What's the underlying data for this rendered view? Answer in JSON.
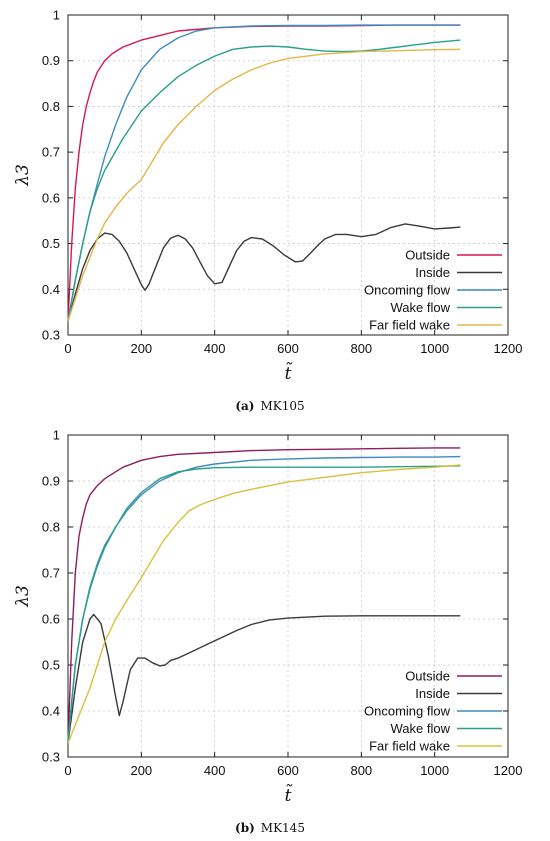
{
  "chart_data": [
    {
      "type": "line",
      "caption_tag": "(a)",
      "caption_name": "MK105",
      "xlabel": "t̃",
      "ylabel": "λ3",
      "xlim": [
        0,
        1200
      ],
      "ylim": [
        0.3,
        1.0
      ],
      "xticks": [
        0,
        200,
        400,
        600,
        800,
        1000,
        1200
      ],
      "yticks": [
        0.3,
        0.4,
        0.5,
        0.6,
        0.7,
        0.8,
        0.9,
        1
      ],
      "grid": true,
      "legend_position": "bottom-right",
      "series": [
        {
          "name": "Outside",
          "color": "#d6165a",
          "x": [
            0,
            10,
            20,
            30,
            40,
            50,
            60,
            70,
            80,
            100,
            120,
            150,
            200,
            250,
            300,
            400,
            500,
            600,
            700,
            800,
            900,
            1000,
            1070
          ],
          "y": [
            0.33,
            0.5,
            0.62,
            0.7,
            0.76,
            0.8,
            0.83,
            0.855,
            0.875,
            0.9,
            0.915,
            0.93,
            0.945,
            0.955,
            0.965,
            0.972,
            0.975,
            0.976,
            0.976,
            0.977,
            0.978,
            0.978,
            0.978
          ]
        },
        {
          "name": "Inside",
          "color": "#3a3a3a",
          "x": [
            0,
            20,
            40,
            60,
            80,
            100,
            120,
            140,
            160,
            180,
            200,
            210,
            220,
            240,
            260,
            280,
            300,
            320,
            340,
            360,
            380,
            400,
            420,
            440,
            460,
            480,
            500,
            530,
            560,
            590,
            620,
            640,
            660,
            680,
            700,
            730,
            760,
            800,
            840,
            880,
            920,
            960,
            1000,
            1040,
            1070
          ],
          "y": [
            0.33,
            0.39,
            0.445,
            0.485,
            0.51,
            0.523,
            0.52,
            0.505,
            0.48,
            0.445,
            0.41,
            0.398,
            0.41,
            0.45,
            0.49,
            0.512,
            0.518,
            0.51,
            0.49,
            0.46,
            0.43,
            0.412,
            0.415,
            0.45,
            0.485,
            0.505,
            0.513,
            0.51,
            0.495,
            0.475,
            0.46,
            0.462,
            0.478,
            0.495,
            0.51,
            0.52,
            0.52,
            0.515,
            0.52,
            0.535,
            0.543,
            0.538,
            0.532,
            0.534,
            0.536
          ]
        },
        {
          "name": "Oncoming flow",
          "color": "#3d8bbf",
          "x": [
            0,
            20,
            40,
            60,
            80,
            100,
            130,
            160,
            200,
            250,
            300,
            350,
            400,
            500,
            600,
            700,
            800,
            900,
            1000,
            1070
          ],
          "y": [
            0.33,
            0.42,
            0.5,
            0.57,
            0.63,
            0.69,
            0.76,
            0.82,
            0.88,
            0.925,
            0.95,
            0.965,
            0.972,
            0.976,
            0.977,
            0.977,
            0.978,
            0.978,
            0.978,
            0.978
          ]
        },
        {
          "name": "Wake flow",
          "color": "#2aa08a",
          "x": [
            0,
            20,
            40,
            60,
            80,
            100,
            150,
            200,
            250,
            300,
            350,
            400,
            450,
            500,
            550,
            600,
            650,
            700,
            750,
            800,
            850,
            900,
            950,
            1000,
            1070
          ],
          "y": [
            0.33,
            0.42,
            0.5,
            0.57,
            0.62,
            0.66,
            0.73,
            0.79,
            0.83,
            0.865,
            0.89,
            0.91,
            0.925,
            0.93,
            0.932,
            0.93,
            0.925,
            0.921,
            0.92,
            0.921,
            0.925,
            0.93,
            0.935,
            0.94,
            0.945
          ]
        },
        {
          "name": "Far field wake",
          "color": "#e2b64a",
          "x": [
            0,
            20,
            40,
            60,
            80,
            100,
            130,
            160,
            200,
            230,
            260,
            300,
            350,
            400,
            450,
            500,
            550,
            600,
            700,
            800,
            900,
            1000,
            1070
          ],
          "y": [
            0.33,
            0.38,
            0.43,
            0.47,
            0.51,
            0.545,
            0.58,
            0.61,
            0.64,
            0.68,
            0.72,
            0.76,
            0.8,
            0.835,
            0.86,
            0.88,
            0.895,
            0.905,
            0.915,
            0.92,
            0.922,
            0.924,
            0.925
          ]
        }
      ]
    },
    {
      "type": "line",
      "caption_tag": "(b)",
      "caption_name": "MK145",
      "xlabel": "t̃",
      "ylabel": "λ3",
      "xlim": [
        0,
        1200
      ],
      "ylim": [
        0.3,
        1.0
      ],
      "xticks": [
        0,
        200,
        400,
        600,
        800,
        1000,
        1200
      ],
      "yticks": [
        0.3,
        0.4,
        0.5,
        0.6,
        0.7,
        0.8,
        0.9,
        1
      ],
      "grid": true,
      "legend_position": "bottom-right",
      "series": [
        {
          "name": "Outside",
          "color": "#8e1d5e",
          "x": [
            0,
            10,
            20,
            30,
            40,
            50,
            60,
            80,
            100,
            150,
            200,
            250,
            300,
            400,
            500,
            600,
            700,
            800,
            900,
            1000,
            1070
          ],
          "y": [
            0.33,
            0.55,
            0.7,
            0.78,
            0.82,
            0.85,
            0.87,
            0.89,
            0.905,
            0.93,
            0.945,
            0.953,
            0.958,
            0.962,
            0.966,
            0.968,
            0.969,
            0.97,
            0.971,
            0.972,
            0.972
          ]
        },
        {
          "name": "Inside",
          "color": "#3a3a3a",
          "x": [
            0,
            20,
            40,
            60,
            70,
            90,
            110,
            130,
            140,
            150,
            170,
            190,
            210,
            230,
            250,
            265,
            280,
            300,
            340,
            380,
            420,
            460,
            500,
            550,
            600,
            700,
            800,
            900,
            1000,
            1070
          ],
          "y": [
            0.33,
            0.45,
            0.55,
            0.6,
            0.61,
            0.59,
            0.52,
            0.43,
            0.39,
            0.42,
            0.49,
            0.515,
            0.515,
            0.505,
            0.498,
            0.5,
            0.51,
            0.515,
            0.53,
            0.545,
            0.56,
            0.575,
            0.588,
            0.598,
            0.602,
            0.606,
            0.607,
            0.607,
            0.607,
            0.607
          ]
        },
        {
          "name": "Oncoming flow",
          "color": "#3d8bbf",
          "x": [
            0,
            10,
            20,
            40,
            60,
            80,
            100,
            130,
            160,
            200,
            250,
            300,
            350,
            400,
            500,
            600,
            700,
            800,
            900,
            1000,
            1070
          ],
          "y": [
            0.33,
            0.42,
            0.5,
            0.6,
            0.67,
            0.72,
            0.76,
            0.8,
            0.835,
            0.87,
            0.9,
            0.918,
            0.93,
            0.937,
            0.945,
            0.948,
            0.95,
            0.951,
            0.952,
            0.952,
            0.953
          ]
        },
        {
          "name": "Wake flow",
          "color": "#2aa08a",
          "x": [
            0,
            10,
            20,
            40,
            60,
            80,
            100,
            130,
            160,
            200,
            250,
            300,
            350,
            400,
            500,
            600,
            700,
            800,
            900,
            1000,
            1070
          ],
          "y": [
            0.33,
            0.42,
            0.5,
            0.6,
            0.665,
            0.715,
            0.755,
            0.8,
            0.84,
            0.875,
            0.905,
            0.92,
            0.926,
            0.929,
            0.93,
            0.93,
            0.93,
            0.93,
            0.931,
            0.932,
            0.933
          ]
        },
        {
          "name": "Far field wake",
          "color": "#d8c23c",
          "x": [
            0,
            20,
            40,
            60,
            80,
            100,
            130,
            160,
            200,
            230,
            260,
            300,
            330,
            360,
            400,
            450,
            500,
            600,
            700,
            800,
            900,
            1000,
            1070
          ],
          "y": [
            0.33,
            0.37,
            0.41,
            0.45,
            0.5,
            0.55,
            0.6,
            0.64,
            0.69,
            0.73,
            0.77,
            0.81,
            0.835,
            0.848,
            0.86,
            0.873,
            0.882,
            0.898,
            0.908,
            0.918,
            0.925,
            0.93,
            0.935
          ]
        }
      ]
    }
  ]
}
